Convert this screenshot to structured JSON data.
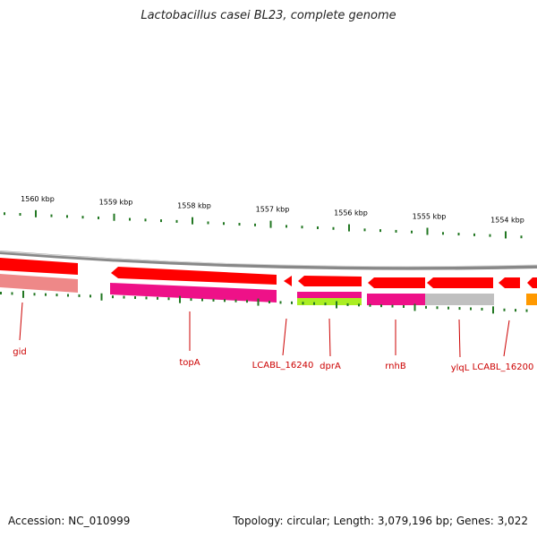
{
  "title": "Lactobacillus casei BL23, complete genome",
  "scale": {
    "ticks": [
      {
        "label": "1560 kbp",
        "kbp": 1560
      },
      {
        "label": "1559 kbp",
        "kbp": 1559
      },
      {
        "label": "1558 kbp",
        "kbp": 1558
      },
      {
        "label": "1557 kbp",
        "kbp": 1557
      },
      {
        "label": "1556 kbp",
        "kbp": 1556
      },
      {
        "label": "1555 kbp",
        "kbp": 1555
      },
      {
        "label": "1554 kbp",
        "kbp": 1554
      }
    ]
  },
  "genes": [
    {
      "name": "gid"
    },
    {
      "name": "topA"
    },
    {
      "name": "LCABL_16240"
    },
    {
      "name": "dprA"
    },
    {
      "name": "rnhB"
    },
    {
      "name": "ylqL"
    },
    {
      "name": "LCABL_16200"
    }
  ],
  "colors": {
    "gene_red": "#ff0000",
    "cds_pink": "#ee1188",
    "cds_light_pink": "#ee8888",
    "green": "#aaee22",
    "gray": "#c0c0c0",
    "orange": "#ff9900",
    "tick_green": "#227722",
    "label_red": "#cc0000",
    "backbone_gray": "#888888"
  },
  "footer": {
    "accession": "Accession: NC_010999",
    "summary": "Topology: circular; Length: 3,079,196 bp; Genes: 3,022"
  }
}
